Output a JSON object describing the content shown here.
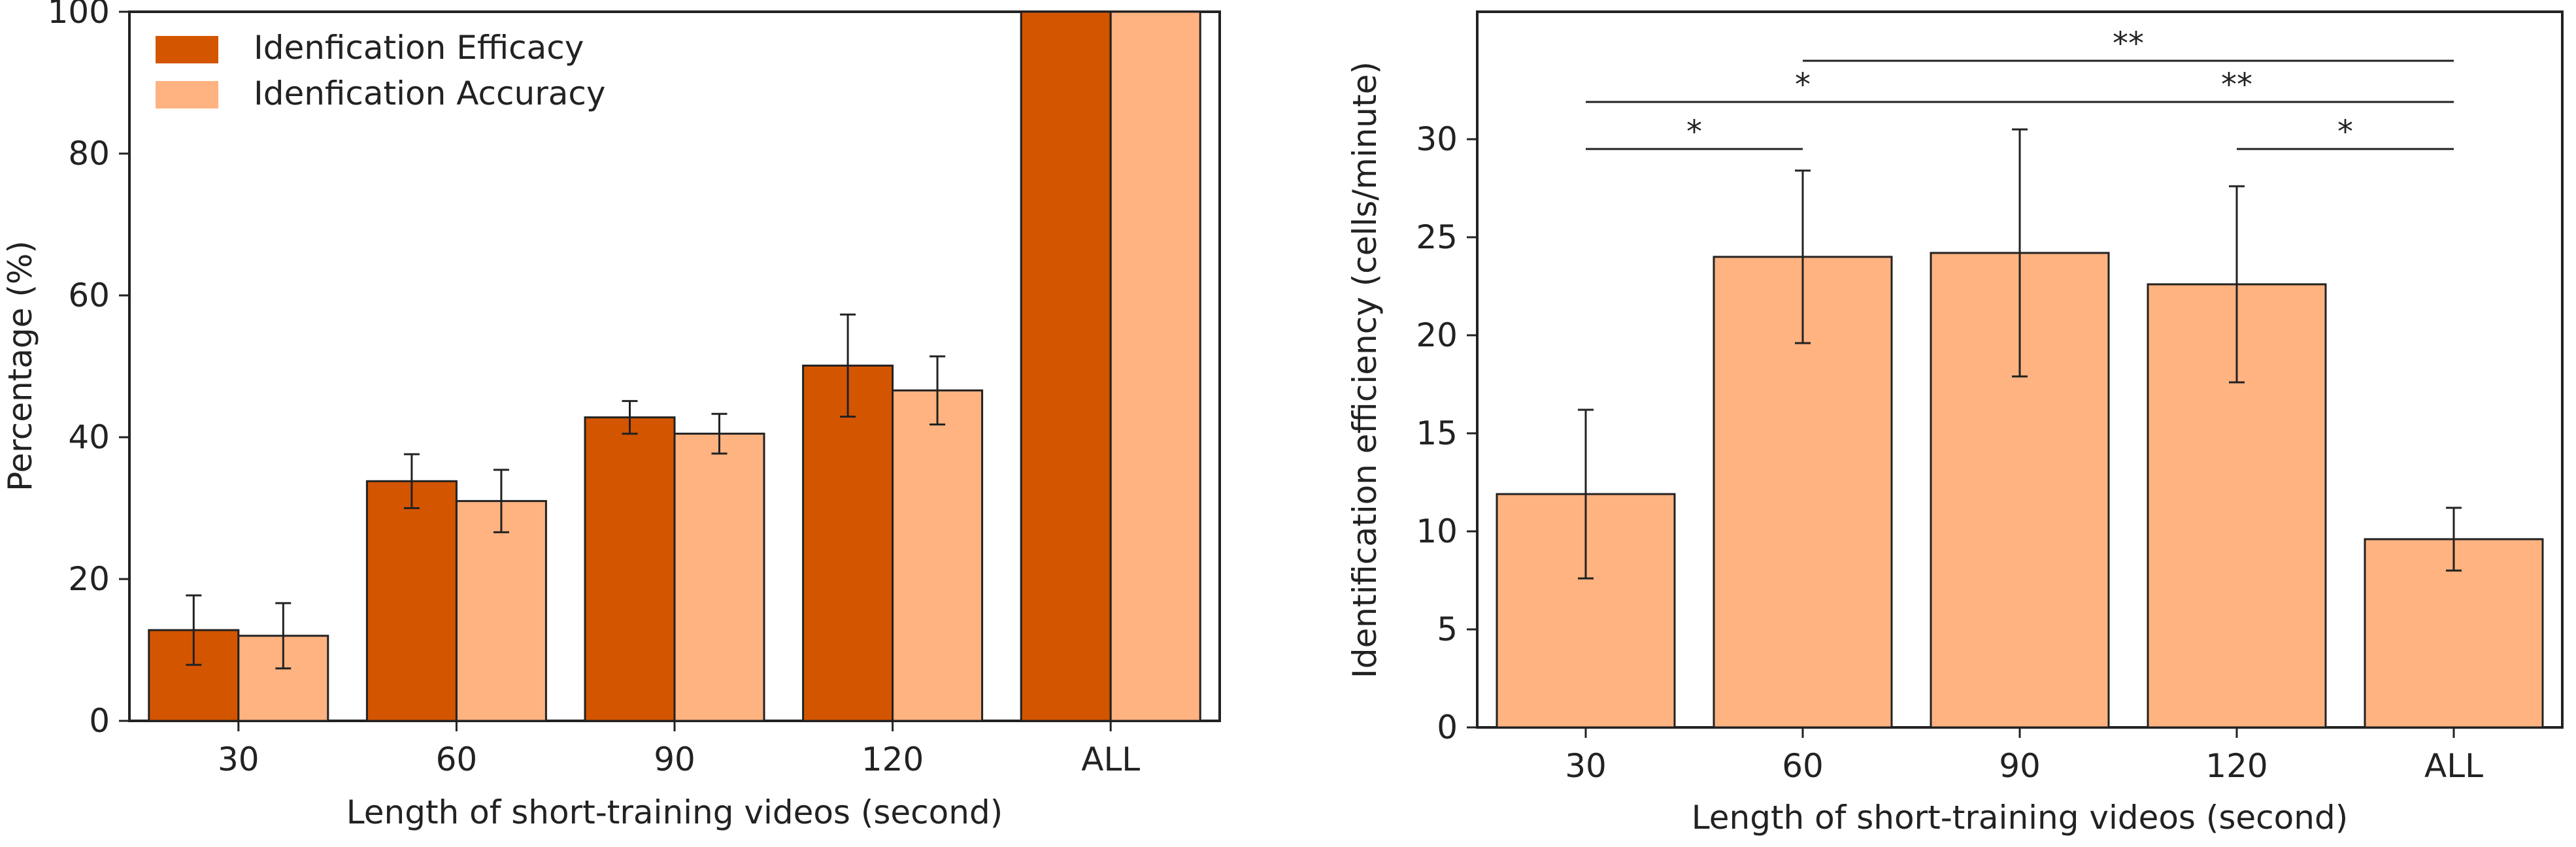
{
  "colors": {
    "efficacy": "#d45500",
    "accuracy": "#ffb380",
    "axis": "#222222",
    "errorbar": "#222222"
  },
  "chart_data": [
    {
      "type": "bar",
      "title": "",
      "xlabel": "Length of short-training videos (second)",
      "ylabel": "Percentage (%)",
      "categories": [
        "30",
        "60",
        "90",
        "120",
        "ALL"
      ],
      "ylim": [
        0,
        100
      ],
      "yticks": [
        0,
        20,
        40,
        60,
        80,
        100
      ],
      "grid": false,
      "legend": "top-left",
      "series": [
        {
          "name": "Idenfication Efficacy",
          "values": [
            12.8,
            33.8,
            42.8,
            50.1,
            100.0
          ],
          "errors": [
            4.9,
            3.8,
            2.3,
            7.2,
            0
          ]
        },
        {
          "name": "Idenfication Accuracy",
          "values": [
            12.0,
            31.0,
            40.5,
            46.6,
            100.0
          ],
          "errors": [
            4.6,
            4.4,
            2.8,
            4.8,
            0
          ]
        }
      ]
    },
    {
      "type": "bar",
      "title": "",
      "xlabel": "Length of short-training videos (second)",
      "ylabel": "Identification efficiency (cells/minute)",
      "categories": [
        "30",
        "60",
        "90",
        "120",
        "ALL"
      ],
      "ylim": [
        0,
        36.5
      ],
      "yticks": [
        0,
        5,
        10,
        15,
        20,
        25,
        30
      ],
      "grid": false,
      "series": [
        {
          "values": [
            11.9,
            24.0,
            24.2,
            22.6,
            9.6
          ],
          "errors": [
            4.3,
            4.4,
            6.3,
            5.0,
            1.6
          ]
        }
      ],
      "significance": [
        {
          "from": "30",
          "to": "60",
          "label": "*",
          "y": 29.5
        },
        {
          "from": "30",
          "to": "90",
          "label": "*",
          "y": 31.9
        },
        {
          "from": "60",
          "to": "ALL",
          "label": "**",
          "y": 34.0
        },
        {
          "from": "90",
          "to": "ALL",
          "label": "**",
          "y": 31.9
        },
        {
          "from": "120",
          "to": "ALL",
          "label": "*",
          "y": 29.5
        }
      ]
    }
  ]
}
